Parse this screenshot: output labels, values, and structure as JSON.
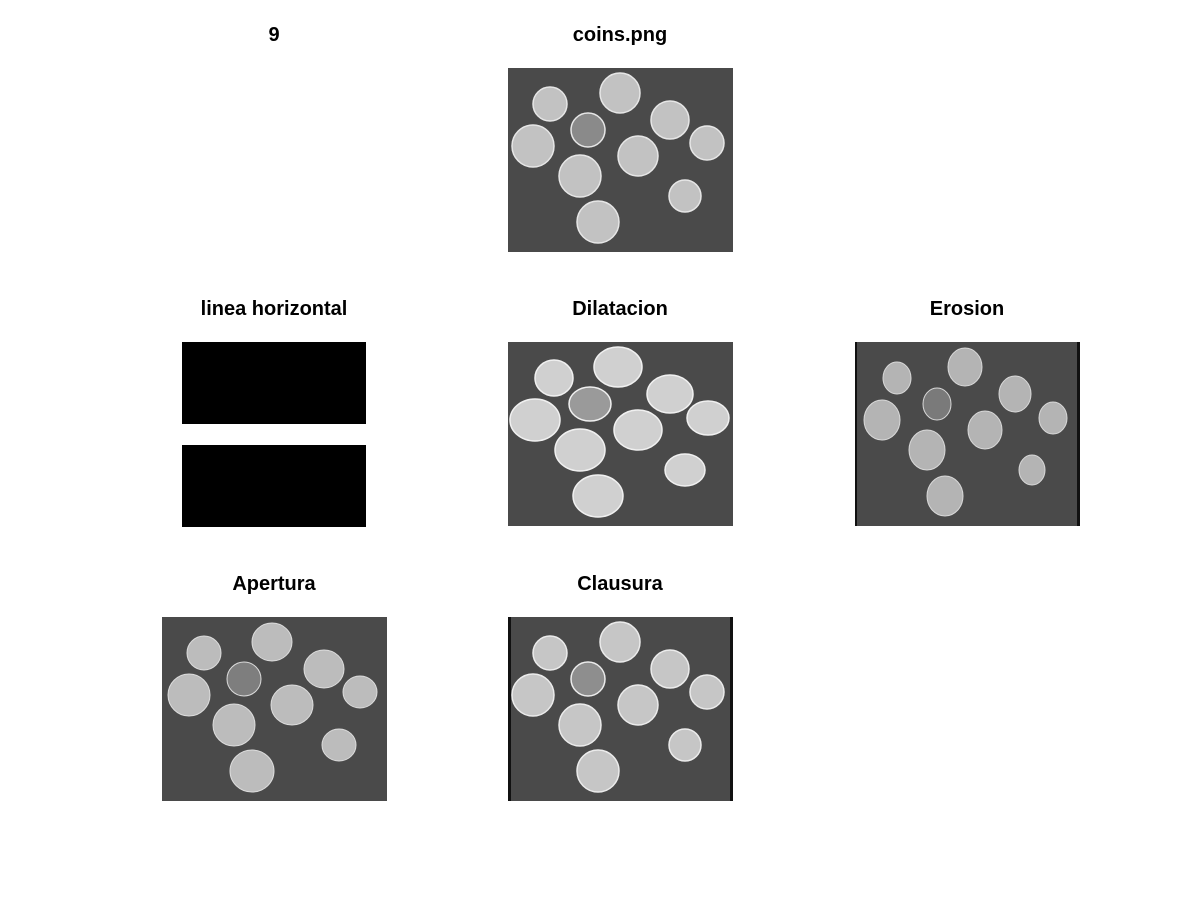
{
  "figure": {
    "titles": {
      "number": "9",
      "original": "coins.png",
      "structuring_element": "linea horizontal",
      "dilation": "Dilatacion",
      "erosion": "Erosion",
      "opening": "Apertura",
      "closing": "Clausura"
    }
  },
  "colors": {
    "background": "#4a4a4a",
    "coin": "#bdbdbd",
    "dark_coin": "#7a7a7a",
    "structuring_element": "#000000"
  }
}
